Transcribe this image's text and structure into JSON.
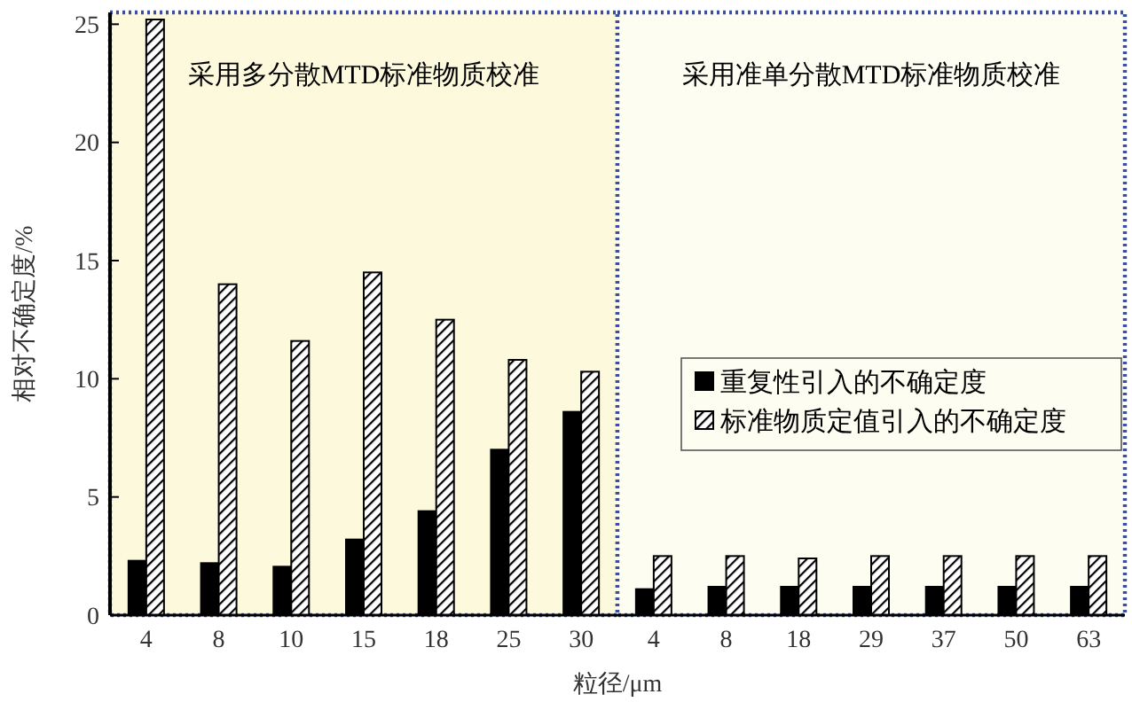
{
  "chart_data": {
    "type": "bar",
    "categories": [
      "4",
      "8",
      "10",
      "15",
      "18",
      "25",
      "30",
      "4",
      "8",
      "18",
      "29",
      "37",
      "50",
      "63"
    ],
    "series": [
      {
        "name": "重复性引入的不确定度",
        "color": "#000000",
        "values": [
          2.3,
          2.2,
          2.05,
          3.2,
          4.4,
          7.0,
          8.6,
          1.1,
          1.2,
          1.2,
          1.2,
          1.2,
          1.2,
          1.2
        ]
      },
      {
        "name": "标准物质定值引入的不确定度",
        "color": "#000000",
        "values": [
          25.2,
          14.0,
          11.6,
          14.5,
          12.5,
          10.8,
          10.3,
          2.5,
          2.5,
          2.4,
          2.5,
          2.5,
          2.5,
          2.5
        ]
      }
    ],
    "xlabel": "粒径/μm",
    "ylabel": "相对不确定度/%",
    "ylim": [
      0,
      25.5
    ],
    "yticks": [
      0,
      5,
      10,
      15,
      20,
      25
    ],
    "annotations": [
      "采用多分散MTD标准物质校准",
      "采用准单分散MTD标准物质校准"
    ],
    "legend": "right",
    "grid": false
  }
}
